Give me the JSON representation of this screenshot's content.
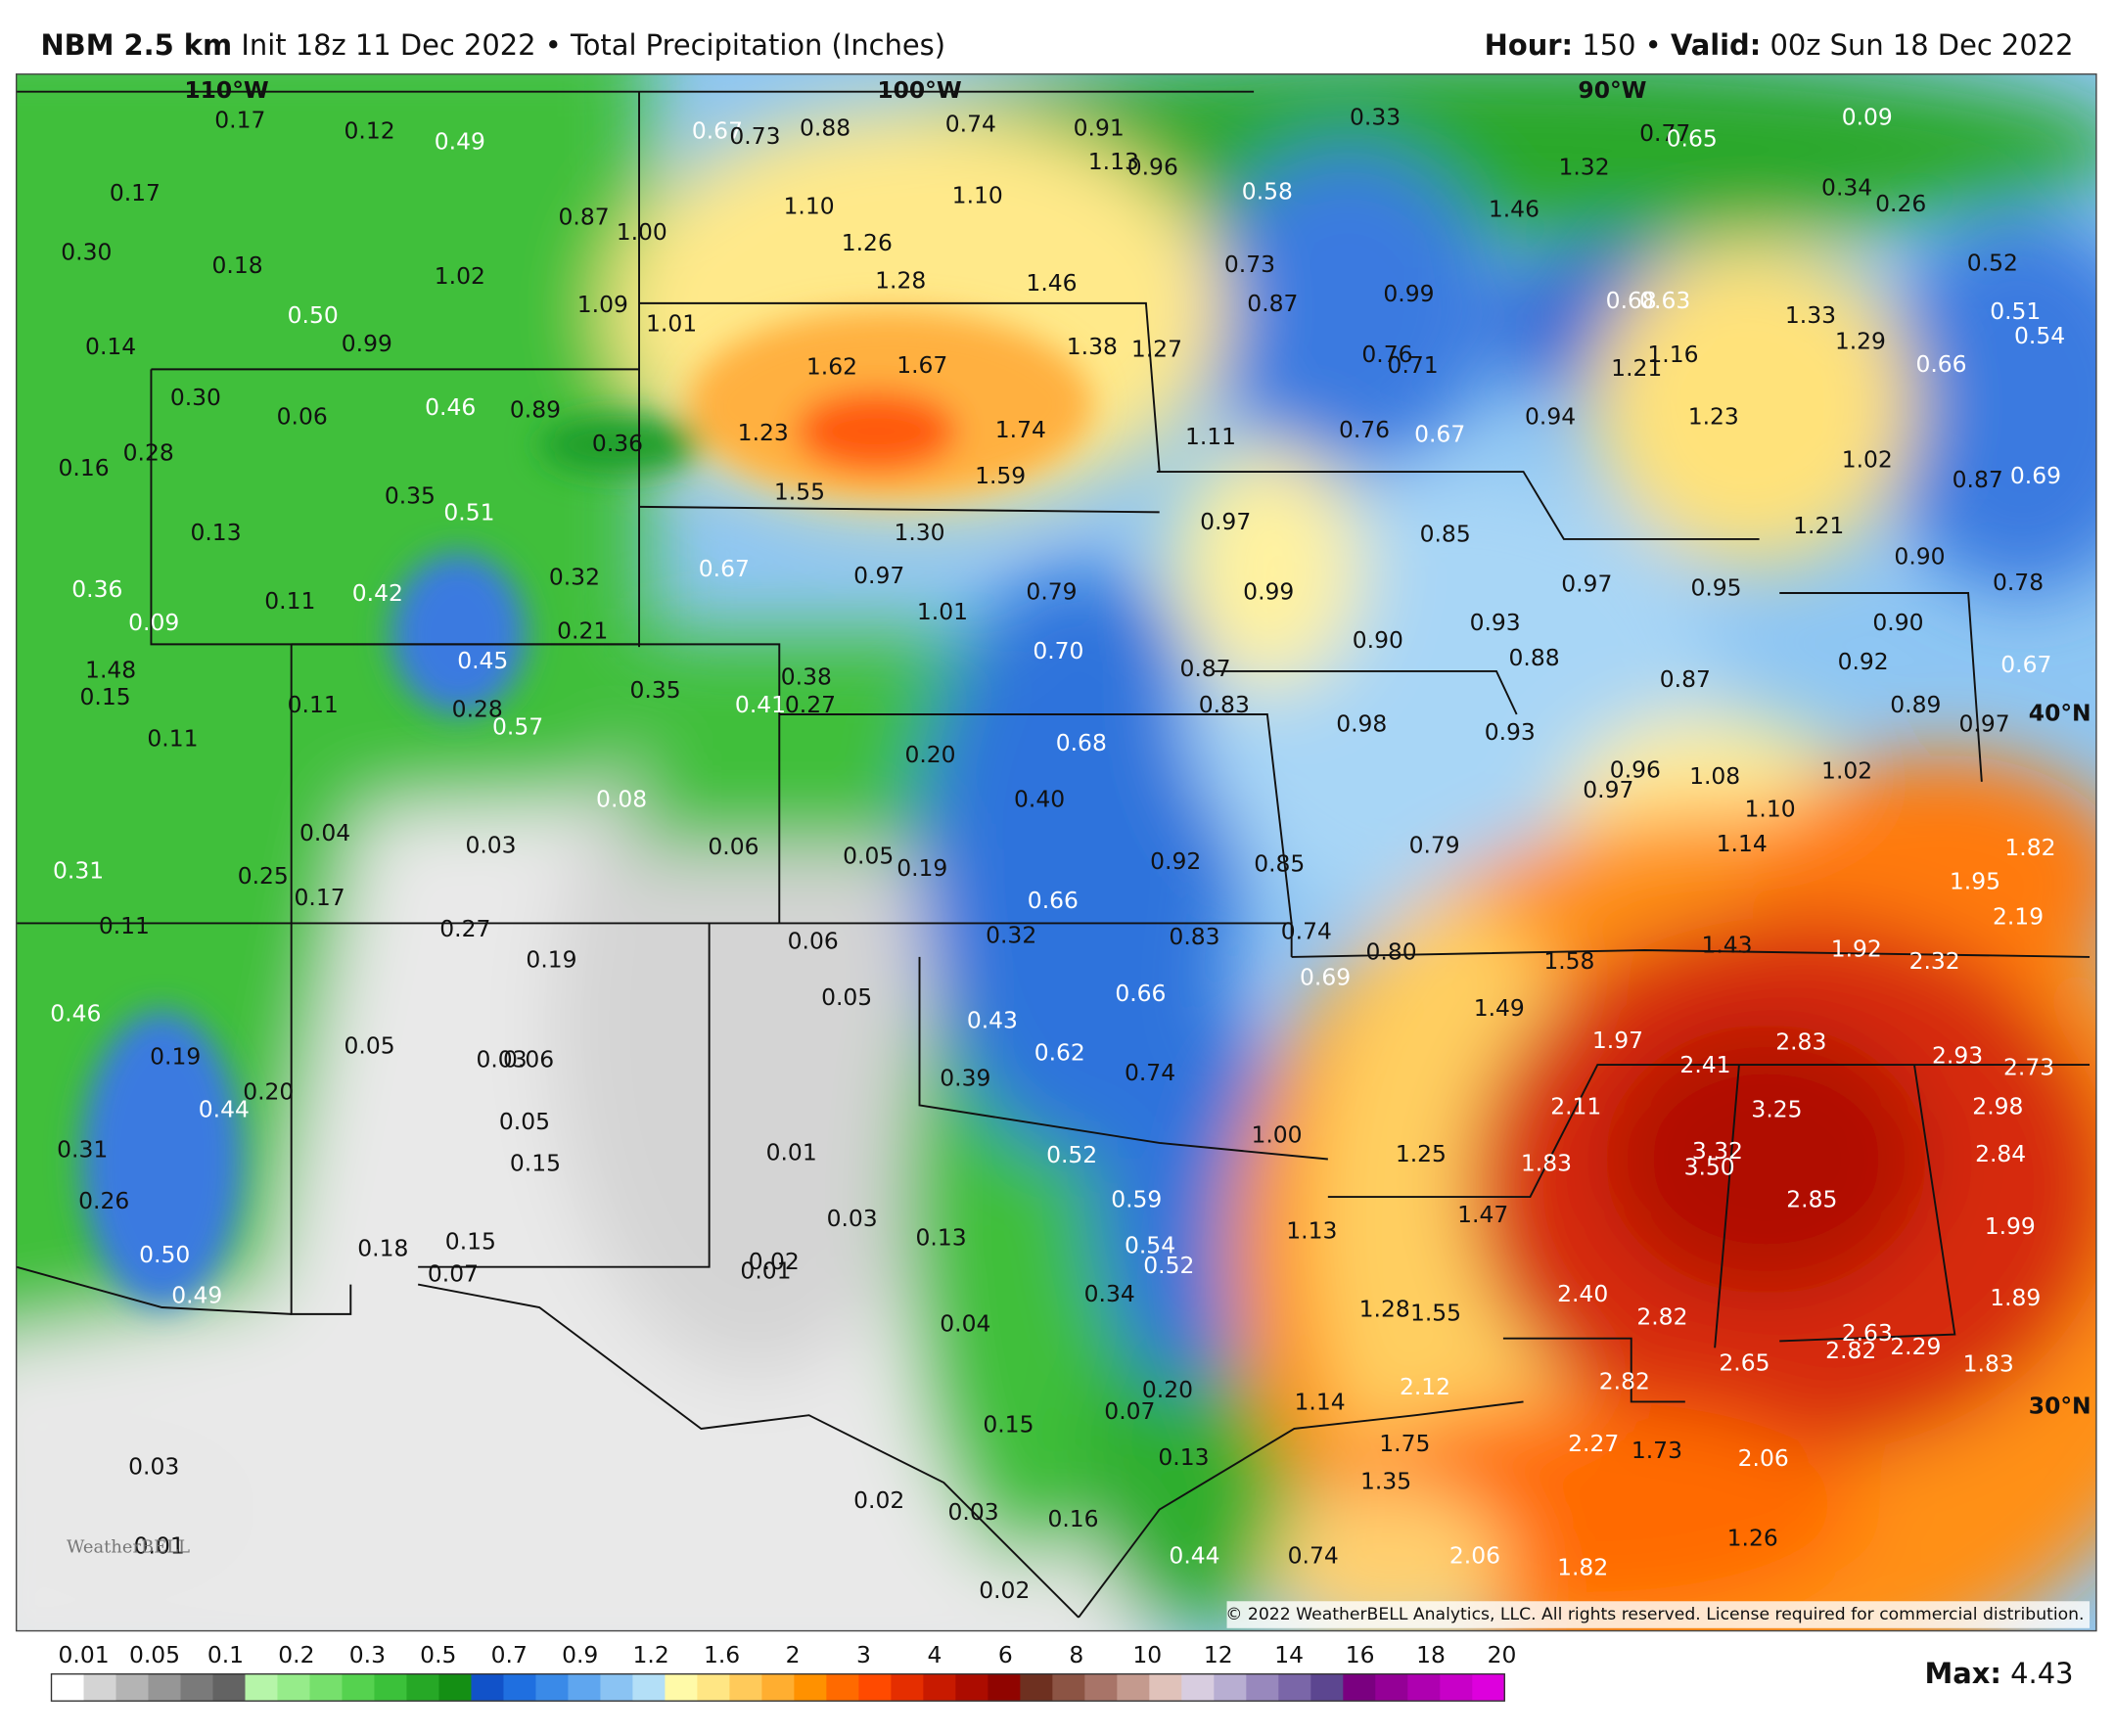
{
  "header": {
    "model": "NBM 2.5 km",
    "init": "Init 18z 11 Dec 2022 • Total Precipitation (Inches)",
    "hour_label": "Hour:",
    "hour_value": "150 •",
    "valid_label": "Valid:",
    "valid_value": "00z Sun 18 Dec 2022"
  },
  "map": {
    "grid_labels": [
      "110°W",
      "100°W",
      "90°W",
      "40°N",
      "30°N"
    ],
    "labels": [
      "0.17",
      "0.12",
      "0.49",
      "0.67",
      "0.73",
      "0.88",
      "0.74",
      "0.91",
      "1.13",
      "0.96",
      "0.33",
      "0.77",
      "0.65",
      "0.09",
      "0.17",
      "0.30",
      "0.18",
      "0.87",
      "1.00",
      "1.10",
      "1.10",
      "1.26",
      "0.58",
      "1.32",
      "1.46",
      "0.34",
      "0.26",
      "1.02",
      "1.09",
      "1.28",
      "1.46",
      "0.73",
      "0.87",
      "0.99",
      "0.68",
      "0.63",
      "0.52",
      "0.51",
      "0.54",
      "0.50",
      "0.99",
      "0.14",
      "1.01",
      "1.62",
      "1.67",
      "1.38",
      "1.27",
      "0.76",
      "0.71",
      "1.21",
      "1.16",
      "1.33",
      "1.29",
      "0.66",
      "0.30",
      "0.06",
      "0.46",
      "0.89",
      "0.36",
      "1.23",
      "1.74",
      "1.11",
      "0.76",
      "0.67",
      "0.94",
      "1.23",
      "0.16",
      "0.28",
      "0.35",
      "0.51",
      "1.55",
      "1.59",
      "1.02",
      "0.87",
      "0.69",
      "0.13",
      "1.30",
      "0.97",
      "0.85",
      "1.21",
      "0.90",
      "0.36",
      "0.42",
      "0.11",
      "0.32",
      "0.67",
      "0.97",
      "0.79",
      "0.99",
      "0.97",
      "0.95",
      "0.78",
      "0.09",
      "0.21",
      "1.01",
      "0.70",
      "0.90",
      "0.93",
      "0.90",
      "1.48",
      "0.15",
      "0.45",
      "0.87",
      "0.88",
      "0.92",
      "0.87",
      "0.67",
      "0.11",
      "0.28",
      "0.35",
      "0.38",
      "0.41",
      "0.27",
      "0.83",
      "0.89",
      "0.11",
      "0.57",
      "0.20",
      "0.68",
      "0.98",
      "0.93",
      "0.97",
      "0.08",
      "0.40",
      "0.96",
      "0.97",
      "1.08",
      "1.02",
      "0.04",
      "0.03",
      "0.06",
      "0.05",
      "0.19",
      "0.92",
      "0.85",
      "0.79",
      "1.10",
      "1.14",
      "1.82",
      "0.31",
      "0.25",
      "0.17",
      "0.66",
      "1.95",
      "2.19",
      "0.11",
      "0.27",
      "0.06",
      "0.32",
      "0.83",
      "0.74",
      "1.43",
      "1.92",
      "2.32",
      "0.19",
      "0.80",
      "0.69",
      "1.58",
      "0.46",
      "0.05",
      "0.66",
      "0.43",
      "1.49",
      "1.97",
      "2.83",
      "0.19",
      "0.05",
      "0.03",
      "0.06",
      "0.62",
      "2.41",
      "2.93",
      "2.73",
      "0.20",
      "0.44",
      "0.39",
      "0.74",
      "2.11",
      "3.25",
      "2.98",
      "0.05",
      "1.00",
      "0.31",
      "0.01",
      "0.52",
      "1.25",
      "3.32",
      "3.50",
      "1.83",
      "2.84",
      "0.15",
      "0.26",
      "0.59",
      "2.85",
      "1.47",
      "0.03",
      "0.13",
      "1.13",
      "1.99",
      "0.15",
      "0.18",
      "0.54",
      "0.52",
      "0.50",
      "0.07",
      "0.02",
      "0.01",
      "0.49",
      "0.34",
      "2.40",
      "2.82",
      "1.28",
      "1.55",
      "1.89",
      "0.04",
      "2.63",
      "2.82",
      "2.29",
      "2.65",
      "1.83",
      "2.12",
      "2.82",
      "0.20",
      "1.14",
      "0.07",
      "0.15",
      "0.03",
      "0.13",
      "1.75",
      "2.27",
      "1.73",
      "2.06",
      "1.35",
      "0.02",
      "0.03",
      "0.16",
      "1.26",
      "0.01",
      "0.44",
      "0.74",
      "2.06",
      "1.82",
      "0.02"
    ],
    "watermark": "WeatherBELL",
    "copyright": "© 2022 WeatherBELL Analytics, LLC. All rights reserved. License required for commercial distribution."
  },
  "legend": {
    "labels": [
      "0.01",
      "0.05",
      "0.1",
      "0.2",
      "0.3",
      "0.5",
      "0.7",
      "0.9",
      "1.2",
      "1.6",
      "2",
      "3",
      "4",
      "6",
      "8",
      "10",
      "12",
      "14",
      "16",
      "18",
      "20"
    ],
    "max_label": "Max:",
    "max_value": "4.43"
  }
}
